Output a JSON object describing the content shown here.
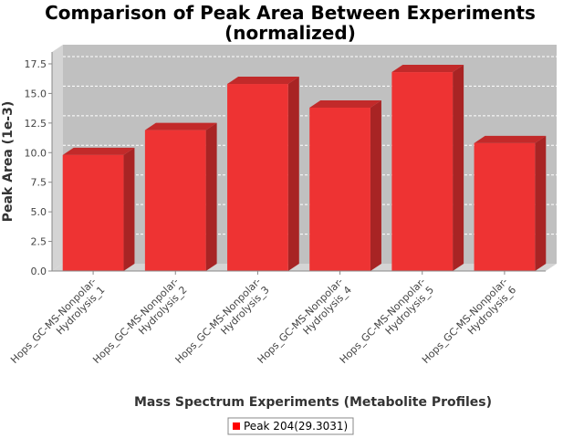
{
  "chart_data": {
    "type": "bar",
    "title_lines": [
      "Comparison of Peak Area Between Experiments",
      "(normalized)"
    ],
    "xlabel": "Mass Spectrum Experiments (Metabolite Profiles)",
    "ylabel": "Peak Area (1e-3)",
    "categories": [
      [
        "Hops_GC-MS-Nonpolar-",
        "Hydrolysis_1"
      ],
      [
        "Hops_GC-MS-Nonpolar-",
        "Hydrolysis_2"
      ],
      [
        "Hops_GC-MS-Nonpolar-",
        "Hydrolysis_3"
      ],
      [
        "Hops_GC-MS-Nonpolar-",
        "Hydrolysis_4"
      ],
      [
        "Hops_GC-MS-Nonpolar-",
        "Hydrolysis_5"
      ],
      [
        "Hops_GC-MS-Nonpolar-",
        "Hydrolysis_6"
      ]
    ],
    "series": [
      {
        "name": "Peak 204(29.3031)",
        "values": [
          9.8,
          11.9,
          15.8,
          13.8,
          16.8,
          10.8
        ]
      }
    ],
    "ylim": [
      0,
      18.5
    ],
    "yticks": [
      0.0,
      2.5,
      5.0,
      7.5,
      10.0,
      12.5,
      15.0,
      17.5
    ],
    "ytick_labels": [
      "0.0",
      "2.5",
      "5.0",
      "7.5",
      "10.0",
      "12.5",
      "15.0",
      "17.5"
    ],
    "grid": true,
    "legend_position": "bottom",
    "colors": {
      "bar_front": "#ee3333",
      "bar_side": "#a82424",
      "bar_top": "#c22a2a",
      "plot_bg": "#c0c0c0",
      "plot_floor": "#d4d4d4",
      "grid": "#ffffff",
      "legend_swatch": "#ff0000"
    }
  }
}
